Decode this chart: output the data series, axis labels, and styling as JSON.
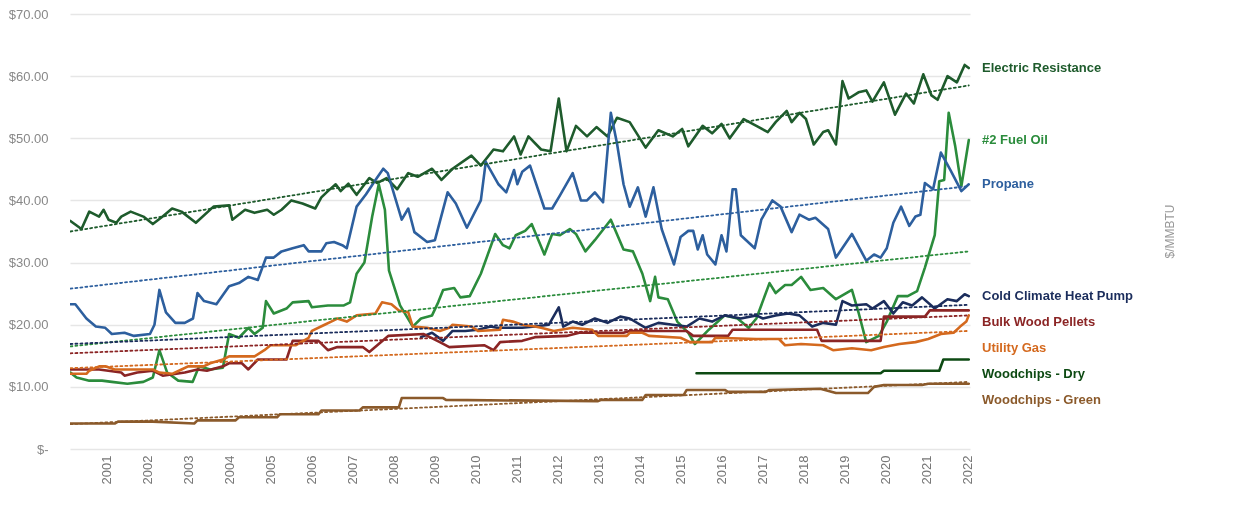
{
  "chart_data": {
    "type": "line",
    "annotations": [
      "$/MMBTU"
    ],
    "xlim": [
      2000.1,
      2022.05
    ],
    "ylim": [
      0,
      70
    ],
    "xticks": [
      2001,
      2002,
      2003,
      2004,
      2005,
      2006,
      2007,
      2008,
      2009,
      2010,
      2011,
      2012,
      2013,
      2014,
      2015,
      2016,
      2017,
      2018,
      2019,
      2020,
      2021,
      2022
    ],
    "yticks": [
      {
        "value": 0,
        "label": "$-"
      },
      {
        "value": 10,
        "label": "$10.00"
      },
      {
        "value": 20,
        "label": "$20.00"
      },
      {
        "value": 30,
        "label": "$30.00"
      },
      {
        "value": 40,
        "label": "$40.00"
      },
      {
        "value": 50,
        "label": "$50.00"
      },
      {
        "value": 60,
        "label": "$60.00"
      },
      {
        "value": 70,
        "label": "$70.00"
      }
    ],
    "grid": "y",
    "marker": "none",
    "series": [
      {
        "name": "Electric Resistance",
        "color": "#1e5b2c",
        "line_style": "solid",
        "x": [
          2000.11,
          2000.38,
          2000.57,
          2000.81,
          2000.92,
          2001.04,
          2001.23,
          2001.35,
          2001.58,
          2001.89,
          2002.12,
          2002.36,
          2002.59,
          2002.82,
          2003.17,
          2003.6,
          2003.98,
          2004.06,
          2004.37,
          2004.6,
          2004.91,
          2005.07,
          2005.26,
          2005.5,
          2005.77,
          2006.08,
          2006.23,
          2006.39,
          2006.58,
          2006.7,
          2006.89,
          2007.09,
          2007.4,
          2007.59,
          2007.82,
          2008.08,
          2008.35,
          2008.58,
          2008.93,
          2009.16,
          2009.43,
          2009.89,
          2010.12,
          2010.43,
          2010.66,
          2010.93,
          2011.09,
          2011.28,
          2011.59,
          2011.82,
          2012.02,
          2012.21,
          2012.44,
          2012.71,
          2012.94,
          2013.21,
          2013.44,
          2013.75,
          2014.14,
          2014.45,
          2014.8,
          2015.03,
          2015.18,
          2015.53,
          2015.76,
          2015.99,
          2016.19,
          2016.53,
          2016.84,
          2017.12,
          2017.31,
          2017.58,
          2017.7,
          2017.89,
          2018.05,
          2018.24,
          2018.47,
          2018.59,
          2018.78,
          2018.94,
          2019.09,
          2019.33,
          2019.52,
          2019.67,
          2019.95,
          2020.22,
          2020.49,
          2020.68,
          2020.91,
          2021.11,
          2021.26,
          2021.5,
          2021.73,
          2021.92,
          2022.02
        ],
        "values": [
          36.7,
          35.4,
          38.2,
          37.4,
          38.5,
          36.9,
          36.4,
          37.4,
          38.2,
          37.4,
          36.2,
          37.4,
          38.7,
          38.2,
          36.4,
          39,
          39.2,
          36.9,
          38.5,
          38,
          38.5,
          37.7,
          38.5,
          40,
          39.5,
          38.7,
          40.5,
          41.5,
          42.6,
          41.5,
          42.7,
          40.9,
          43.6,
          42.8,
          43.6,
          41.8,
          44.4,
          43.8,
          45.1,
          43.3,
          45.1,
          47.2,
          45.6,
          48.2,
          47.9,
          50.3,
          47.4,
          50.3,
          48.2,
          47.9,
          56.4,
          47.9,
          52,
          50.3,
          51.8,
          50.3,
          53.3,
          52.6,
          48.5,
          51.3,
          50.3,
          51.5,
          48.7,
          52,
          50.8,
          52.3,
          50,
          53.1,
          52,
          51,
          52.6,
          54.4,
          52.6,
          54.1,
          53.1,
          49,
          51,
          51.3,
          49,
          59.2,
          56.4,
          57.4,
          57.7,
          55.9,
          59,
          53.8,
          57.2,
          55.6,
          60.3,
          56.9,
          56.2,
          60,
          59,
          61.8,
          61.3
        ]
      },
      {
        "name": "#2 Fuel Oil",
        "color": "#2b8c3c",
        "line_style": "solid",
        "x": [
          2000.11,
          2000.26,
          2000.57,
          2000.88,
          2001.12,
          2001.5,
          2001.89,
          2002.12,
          2002.28,
          2002.47,
          2002.74,
          2003.09,
          2003.25,
          2003.52,
          2003.83,
          2003.98,
          2004.22,
          2004.45,
          2004.6,
          2004.8,
          2004.88,
          2005.07,
          2005.38,
          2005.53,
          2005.92,
          2006,
          2006.39,
          2006.78,
          2006.93,
          2007.09,
          2007.28,
          2007.47,
          2007.63,
          2007.78,
          2007.88,
          2008.15,
          2008.46,
          2008.66,
          2008.93,
          2009.08,
          2009.2,
          2009.47,
          2009.62,
          2009.85,
          2010.12,
          2010.47,
          2010.66,
          2010.82,
          2010.97,
          2011.2,
          2011.36,
          2011.67,
          2011.86,
          2012.05,
          2012.29,
          2012.44,
          2012.67,
          2012.9,
          2013.29,
          2013.6,
          2013.83,
          2014.06,
          2014.25,
          2014.37,
          2014.45,
          2014.68,
          2014.91,
          2015.18,
          2015.34,
          2015.68,
          2016.07,
          2016.38,
          2016.65,
          2016.84,
          2017.16,
          2017.31,
          2017.54,
          2017.7,
          2017.93,
          2018.16,
          2018.47,
          2018.78,
          2019.17,
          2019.33,
          2019.52,
          2019.83,
          2020.02,
          2020.29,
          2020.53,
          2020.76,
          2020.95,
          2021.19,
          2021.3,
          2021.42,
          2021.53,
          2021.69,
          2021.84,
          2022.02
        ],
        "values": [
          12.3,
          11.5,
          11,
          11,
          10.8,
          10.5,
          10.8,
          11.5,
          15.9,
          12.3,
          11,
          10.8,
          13.3,
          12.8,
          13.1,
          18.5,
          17.9,
          19.5,
          18.5,
          19.5,
          23.8,
          21.8,
          22.6,
          23.6,
          23.8,
          22.8,
          23.1,
          23.1,
          23.6,
          28.2,
          30,
          37.4,
          42.6,
          38.5,
          28.7,
          23.1,
          19.7,
          21,
          21.5,
          23.6,
          25.6,
          25.9,
          24.4,
          24.6,
          28.2,
          34.6,
          32.8,
          32.3,
          34.4,
          35.1,
          36.2,
          31.3,
          34.6,
          34.4,
          35.4,
          34.6,
          31.8,
          33.6,
          36.9,
          32.1,
          31.8,
          28.2,
          23.8,
          27.7,
          24.4,
          24.1,
          20.5,
          18.7,
          16.9,
          19.2,
          21.5,
          21,
          19.5,
          21,
          26.7,
          25.1,
          26.4,
          26.4,
          27.7,
          25.6,
          25.9,
          24.1,
          25.6,
          22,
          17.2,
          18.2,
          20.5,
          24.6,
          24.6,
          25.4,
          29.2,
          34.4,
          43.1,
          43.3,
          54.1,
          48.7,
          42.3,
          49.7
        ]
      },
      {
        "name": "Propane",
        "color": "#2d5f9e",
        "line_style": "solid",
        "x": [
          2000.11,
          2000.23,
          2000.5,
          2000.73,
          2000.96,
          2001.12,
          2001.43,
          2001.66,
          2002.05,
          2002.16,
          2002.28,
          2002.44,
          2002.67,
          2002.9,
          2003.1,
          2003.21,
          2003.37,
          2003.67,
          2003.98,
          2004.22,
          2004.45,
          2004.68,
          2004.88,
          2005.07,
          2005.26,
          2005.53,
          2005.8,
          2005.92,
          2006.23,
          2006.35,
          2006.54,
          2006.74,
          2006.85,
          2007.09,
          2007.32,
          2007.55,
          2007.74,
          2007.85,
          2008.19,
          2008.35,
          2008.5,
          2008.81,
          2009,
          2009.31,
          2009.51,
          2009.78,
          2010.12,
          2010.24,
          2010.55,
          2010.74,
          2010.93,
          2011.01,
          2011.13,
          2011.32,
          2011.67,
          2011.86,
          2012.05,
          2012.36,
          2012.56,
          2012.71,
          2012.9,
          2013.1,
          2013.29,
          2013.44,
          2013.6,
          2013.75,
          2013.95,
          2014.14,
          2014.33,
          2014.53,
          2014.83,
          2014.99,
          2015.18,
          2015.3,
          2015.41,
          2015.53,
          2015.64,
          2015.84,
          2015.99,
          2016.11,
          2016.26,
          2016.34,
          2016.46,
          2016.8,
          2016.96,
          2017.23,
          2017.43,
          2017.7,
          2017.89,
          2018.12,
          2018.28,
          2018.59,
          2018.78,
          2019.17,
          2019.52,
          2019.71,
          2019.87,
          2020.02,
          2020.18,
          2020.37,
          2020.57,
          2020.72,
          2020.84,
          2020.95,
          2021.15,
          2021.34,
          2021.57,
          2021.84,
          2022.02
        ],
        "values": [
          23.3,
          23.3,
          21,
          19.7,
          19.5,
          18.5,
          18.7,
          18.2,
          18.5,
          20,
          25.6,
          22,
          20.3,
          20.3,
          21,
          25.1,
          23.8,
          23.3,
          26.2,
          26.7,
          27.7,
          27.2,
          30.8,
          30.8,
          31.8,
          32.3,
          32.8,
          31.8,
          31.8,
          33.1,
          33.3,
          32.8,
          32.3,
          39,
          41,
          43.3,
          45.1,
          44.4,
          36.9,
          38.7,
          34.9,
          33.3,
          33.6,
          41.3,
          39.5,
          35.6,
          40,
          46.2,
          42.6,
          41.3,
          44.9,
          42.6,
          44.6,
          45.6,
          38.7,
          38.7,
          40.8,
          44.4,
          40,
          40,
          41.3,
          39.7,
          54.1,
          49.2,
          42.6,
          39,
          42.1,
          37.4,
          42.1,
          35.4,
          29.7,
          34.1,
          35.1,
          35.1,
          32.1,
          34.4,
          31.3,
          29.7,
          34.4,
          31.8,
          41.8,
          41.8,
          34.4,
          32.3,
          36.9,
          40,
          39,
          34.9,
          37.7,
          36.9,
          37.2,
          35.4,
          30.8,
          34.6,
          30.3,
          31.3,
          30.8,
          32.3,
          36.4,
          39,
          35.9,
          37.4,
          37.7,
          42.8,
          41.8,
          47.7,
          44.9,
          41.5,
          42.6
        ]
      },
      {
        "name": "Cold Climate Heat Pump",
        "color": "#1b2d5c",
        "line_style": "solid",
        "x": [
          2008.66,
          2008.93,
          2009.2,
          2009.43,
          2009.74,
          2010.05,
          2010.36,
          2010.51,
          2010.82,
          2011.13,
          2011.44,
          2011.78,
          2012.02,
          2012.13,
          2012.36,
          2012.59,
          2012.9,
          2013.21,
          2013.52,
          2013.75,
          2014.14,
          2014.45,
          2014.8,
          2015.14,
          2015.45,
          2015.76,
          2016.07,
          2016.46,
          2016.84,
          2017.0,
          2017.31,
          2017.62,
          2017.89,
          2018.2,
          2018.47,
          2018.78,
          2018.94,
          2019.17,
          2019.52,
          2019.67,
          2019.95,
          2020.18,
          2020.41,
          2020.64,
          2020.88,
          2021.19,
          2021.5,
          2021.73,
          2021.92,
          2022.02
        ],
        "values": [
          18,
          18.7,
          17.4,
          19,
          19,
          19.2,
          19.7,
          19.5,
          19.5,
          19.5,
          19.7,
          20,
          22.8,
          19.7,
          20.5,
          20,
          21,
          20.3,
          21.3,
          21,
          19.5,
          20.3,
          20,
          19.7,
          21,
          20.5,
          21.5,
          21,
          21.5,
          21,
          21.5,
          21.8,
          21.5,
          19.7,
          20.3,
          20,
          23.8,
          23.1,
          23.3,
          22.6,
          23.8,
          21.8,
          23.6,
          23.1,
          24.4,
          22.6,
          24.1,
          23.8,
          24.9,
          24.6
        ]
      },
      {
        "name": "Bulk Wood Pellets",
        "color": "#8b2525",
        "line_style": "solid",
        "x": [
          2000.11,
          2000.81,
          2001.35,
          2001.43,
          2001.74,
          2002.12,
          2002.36,
          2002.9,
          2003.21,
          2003.44,
          2003.83,
          2003.98,
          2004.29,
          2004.45,
          2004.68,
          2005.38,
          2005.53,
          2006.16,
          2006.39,
          2006.62,
          2007.24,
          2007.4,
          2007.63,
          2007.86,
          2008.73,
          2009.12,
          2009.35,
          2010.2,
          2010.43,
          2010.59,
          2011.13,
          2011.44,
          2012.21,
          2012.52,
          2013.6,
          2013.75,
          2015.14,
          2015.3,
          2016.15,
          2016.26,
          2018.32,
          2018.43,
          2019.87,
          2019.95,
          2020.95,
          2021.07,
          2022.02
        ],
        "values": [
          12.8,
          12.8,
          12.3,
          11.8,
          12.3,
          12.6,
          11.8,
          12.3,
          12.8,
          12.6,
          13.3,
          13.8,
          13.8,
          12.8,
          14.4,
          14.4,
          17.4,
          17.4,
          15.9,
          16.4,
          16.4,
          15.6,
          16.9,
          18.2,
          18.5,
          17.2,
          16.4,
          16.7,
          15.9,
          17.2,
          17.4,
          18,
          18.2,
          18.7,
          18.7,
          19,
          19,
          18.2,
          18.2,
          19.2,
          19.2,
          17.4,
          17.4,
          21.3,
          21.3,
          22.3,
          22.3
        ]
      },
      {
        "name": "Utility Gas",
        "color": "#d4691e",
        "line_style": "solid",
        "x": [
          2000.11,
          2000.5,
          2000.57,
          2000.81,
          2000.96,
          2001.19,
          2002.12,
          2002.28,
          2002.59,
          2002.82,
          2002.98,
          2003.36,
          2003.52,
          2003.83,
          2003.98,
          2004.6,
          2004.84,
          2004.99,
          2005.61,
          2005.92,
          2006,
          2006.31,
          2006.47,
          2006.62,
          2006.85,
          2007.09,
          2007.55,
          2007.71,
          2007.94,
          2008.12,
          2008.35,
          2008.46,
          2008.81,
          2009.12,
          2009.35,
          2009.43,
          2009.89,
          2010.05,
          2010.59,
          2010.66,
          2010.9,
          2011.13,
          2011.44,
          2011.59,
          2011.9,
          2012.36,
          2012.83,
          2012.98,
          2013.68,
          2013.75,
          2014.06,
          2014.22,
          2014.99,
          2015.22,
          2015.76,
          2015.84,
          2016.84,
          2017.39,
          2017.54,
          2017.93,
          2018.47,
          2018.71,
          2019.17,
          2019.64,
          2019.95,
          2020.33,
          2020.72,
          2021.03,
          2021.34,
          2021.65,
          2021.81,
          2021.96,
          2022.02
        ],
        "values": [
          12.1,
          12.1,
          12.6,
          13.3,
          13.3,
          12.8,
          12.8,
          12.3,
          12.1,
          12.8,
          13.3,
          13.3,
          13.8,
          14.4,
          14.9,
          14.9,
          15.9,
          16.7,
          16.7,
          17.9,
          19,
          20,
          20.5,
          21,
          20.5,
          21.5,
          21.8,
          23.6,
          23.3,
          22.3,
          22,
          19.7,
          19.5,
          19,
          19.5,
          20,
          19.7,
          19,
          19.2,
          20.8,
          20.5,
          20,
          19.7,
          19.5,
          19,
          19.5,
          19.2,
          18.2,
          18.2,
          18.7,
          18.7,
          18.2,
          17.9,
          17.2,
          17.2,
          17.9,
          17.7,
          17.7,
          16.7,
          16.9,
          16.7,
          15.9,
          16.2,
          15.9,
          16.4,
          16.9,
          17.2,
          17.7,
          18.5,
          18.7,
          19.7,
          20.5,
          21.5
        ]
      },
      {
        "name": "Woodchips - Dry",
        "color": "#0d4a13",
        "line_style": "solid",
        "x": [
          2015.38,
          2019.87,
          2019.95,
          2021.3,
          2021.4,
          2022.02
        ],
        "values": [
          12.2,
          12.2,
          12.6,
          12.6,
          14.4,
          14.4
        ]
      },
      {
        "name": "Woodchips - Green",
        "color": "#8b5a2b",
        "line_style": "solid",
        "x": [
          2000.11,
          2001.19,
          2001.27,
          2002.12,
          2003.13,
          2003.21,
          2004.14,
          2004.22,
          2005.15,
          2005.22,
          2006.16,
          2006.23,
          2007.16,
          2007.24,
          2008.12,
          2008.19,
          2009.2,
          2009.27,
          2012.98,
          2013.06,
          2014.06,
          2014.14,
          2015.07,
          2015.14,
          2016.07,
          2016.15,
          2017.07,
          2017.16,
          2018.4,
          2018.78,
          2019.56,
          2019.71,
          2019.95,
          2020.88,
          2021.03,
          2022.02
        ],
        "values": [
          4.1,
          4.1,
          4.4,
          4.4,
          4.1,
          4.6,
          4.6,
          5.1,
          5.1,
          5.6,
          5.6,
          6.2,
          6.2,
          6.7,
          6.7,
          8.2,
          8.2,
          7.9,
          7.7,
          7.9,
          7.9,
          8.7,
          8.7,
          9.5,
          9.5,
          9.2,
          9.2,
          9.5,
          9.7,
          9.0,
          9.0,
          10,
          10.3,
          10.3,
          10.5,
          10.5
        ]
      },
      {
        "type": "line",
        "color": "#1e5b2c",
        "line_style": "dotted",
        "x": [
          2000.11,
          2022.02
        ],
        "values": [
          35,
          58.5
        ]
      },
      {
        "type": "line",
        "color": "#2d5f9e",
        "line_style": "dotted",
        "x": [
          2000.11,
          2022.02
        ],
        "values": [
          25.8,
          42.3
        ]
      },
      {
        "type": "line",
        "color": "#2b8c3c",
        "line_style": "dotted",
        "x": [
          2000.11,
          2022.02
        ],
        "values": [
          16.5,
          31.8
        ]
      },
      {
        "type": "line",
        "color": "#1b2d5c",
        "line_style": "dotted",
        "x": [
          2000.11,
          2022.02
        ],
        "values": [
          16.9,
          23.2
        ]
      },
      {
        "type": "line",
        "color": "#8b2525",
        "line_style": "dotted",
        "x": [
          2000.11,
          2022.02
        ],
        "values": [
          15.4,
          21.5
        ]
      },
      {
        "type": "line",
        "color": "#d4691e",
        "line_style": "dotted",
        "x": [
          2000.11,
          2022.02
        ],
        "values": [
          13.0,
          19.0
        ]
      },
      {
        "type": "line",
        "color": "#8b5a2b",
        "line_style": "dotted",
        "x": [
          2000.11,
          2022.02
        ],
        "values": [
          4.0,
          10.8
        ]
      }
    ]
  }
}
